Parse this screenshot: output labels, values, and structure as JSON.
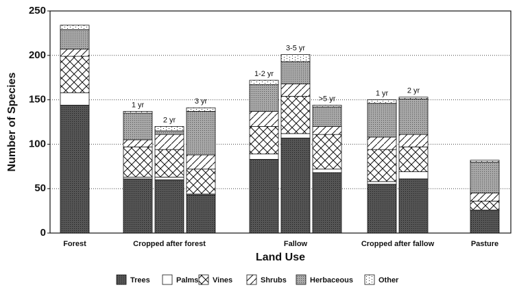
{
  "chart_data": {
    "type": "stacked-bar",
    "x_label": "Land Use",
    "y_label": "Number of Species",
    "groups": [
      {
        "name": "Forest",
        "bars": [
          null
        ]
      },
      {
        "name": "Cropped after forest",
        "bars": [
          "1 yr",
          "2 yr",
          "3 yr"
        ]
      },
      {
        "name": "Fallow",
        "bars": [
          "1-2 yr",
          "3-5 yr",
          ">5 yr"
        ]
      },
      {
        "name": "Cropped after fallow",
        "bars": [
          "1 yr",
          "2 yr"
        ]
      },
      {
        "name": "Pasture",
        "bars": [
          null
        ]
      }
    ],
    "series": [
      {
        "name": "Trees",
        "color": "#555555",
        "values": [
          144,
          61,
          60,
          43,
          83,
          107,
          68,
          55,
          61,
          25
        ]
      },
      {
        "name": "Palms",
        "color": "#ffffff",
        "values": [
          14,
          2,
          3,
          1,
          6,
          5,
          4,
          3,
          8,
          1
        ]
      },
      {
        "name": "Vines",
        "color": "#ffffff",
        "values": [
          41,
          34,
          31,
          28,
          31,
          42,
          39,
          36,
          28,
          10
        ]
      },
      {
        "name": "Shrubs",
        "color": "#ffffff",
        "values": [
          8,
          8,
          17,
          16,
          17,
          14,
          9,
          14,
          14,
          9
        ]
      },
      {
        "name": "Herbaceous",
        "color": "#a8a8a8",
        "values": [
          22,
          30,
          4,
          49,
          30,
          25,
          22,
          38,
          40,
          35
        ]
      },
      {
        "name": "Other",
        "color": "#ffffff",
        "values": [
          5,
          2,
          5,
          4,
          5,
          8,
          2,
          4,
          2,
          2
        ]
      }
    ],
    "ylim": [
      0,
      250
    ],
    "yticks": [
      0,
      50,
      100,
      150,
      200,
      250
    ],
    "grid": true,
    "legend": "bottom"
  }
}
